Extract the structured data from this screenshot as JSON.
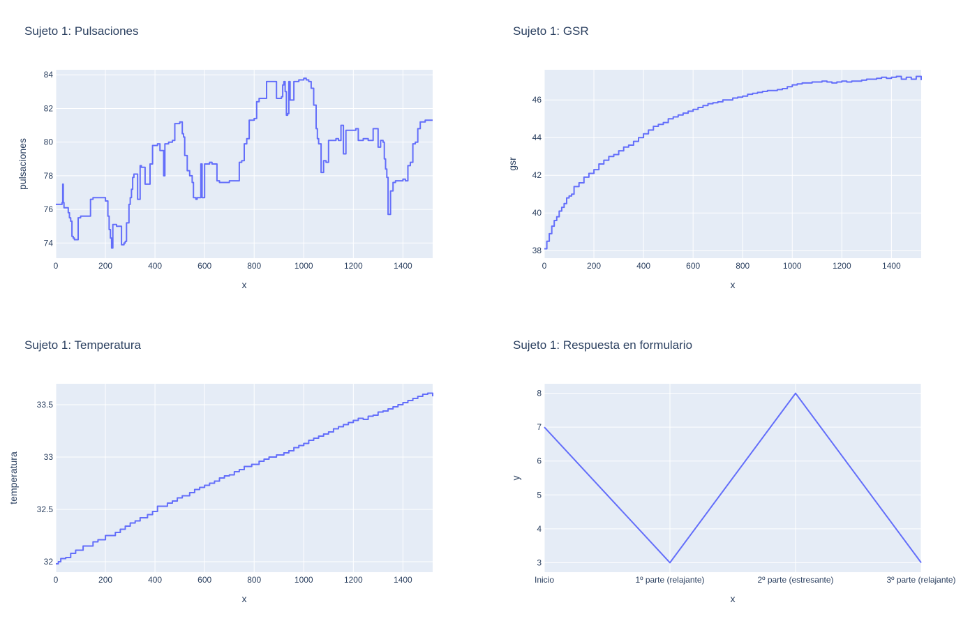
{
  "chart_data": [
    {
      "type": "line",
      "title": "Sujeto 1: Pulsaciones",
      "xlabel": "x",
      "ylabel": "pulsaciones",
      "xlim": [
        0,
        1520
      ],
      "ylim": [
        73.1,
        84.3
      ],
      "xticks": [
        0,
        200,
        400,
        600,
        800,
        1000,
        1200,
        1400
      ],
      "yticks": [
        74,
        76,
        78,
        80,
        82,
        84
      ],
      "line_shape": "hv",
      "series": [
        {
          "x": [
            0,
            25,
            28,
            30,
            33,
            50,
            55,
            60,
            65,
            70,
            75,
            90,
            100,
            140,
            150,
            170,
            200,
            210,
            215,
            220,
            225,
            230,
            245,
            265,
            275,
            280,
            285,
            290,
            295,
            300,
            305,
            310,
            315,
            320,
            330,
            340,
            345,
            350,
            360,
            380,
            390,
            410,
            420,
            425,
            435,
            440,
            455,
            470,
            480,
            500,
            510,
            515,
            520,
            530,
            540,
            550,
            555,
            560,
            565,
            570,
            585,
            590,
            600,
            620,
            630,
            650,
            660,
            700,
            740,
            750,
            760,
            770,
            780,
            800,
            810,
            820,
            830,
            840,
            850,
            870,
            890,
            910,
            915,
            920,
            925,
            930,
            935,
            940,
            945,
            960,
            980,
            1000,
            1010,
            1020,
            1030,
            1040,
            1050,
            1055,
            1060,
            1070,
            1080,
            1090,
            1100,
            1130,
            1140,
            1150,
            1160,
            1170,
            1210,
            1220,
            1240,
            1260,
            1280,
            1300,
            1310,
            1320,
            1325,
            1330,
            1335,
            1340,
            1350,
            1360,
            1370,
            1400,
            1410,
            1420,
            1430,
            1440,
            1450,
            1460,
            1470,
            1490,
            1520
          ],
          "y": [
            76.3,
            76.4,
            77.5,
            76.4,
            76.1,
            75.8,
            75.5,
            75.3,
            74.4,
            74.3,
            74.2,
            75.5,
            75.6,
            76.6,
            76.7,
            76.7,
            76.5,
            75.6,
            74.8,
            74.3,
            73.7,
            75.1,
            75.0,
            73.9,
            74.0,
            74.1,
            75.2,
            75.2,
            76.3,
            76.7,
            77.2,
            77.9,
            78.1,
            78.1,
            76.6,
            78.6,
            78.5,
            78.5,
            77.5,
            78.7,
            79.8,
            79.9,
            79.5,
            79.5,
            78.0,
            79.9,
            80.0,
            80.1,
            81.1,
            81.2,
            80.5,
            80.3,
            79.2,
            78.3,
            78.0,
            77.6,
            76.7,
            76.7,
            76.6,
            76.7,
            78.7,
            76.7,
            78.7,
            78.8,
            78.7,
            77.7,
            77.6,
            77.7,
            78.8,
            78.9,
            79.9,
            80.2,
            81.3,
            81.4,
            82.4,
            82.6,
            82.6,
            82.6,
            83.6,
            83.6,
            82.6,
            82.7,
            83.4,
            83.6,
            83.0,
            81.6,
            81.7,
            83.6,
            82.5,
            83.6,
            83.7,
            83.8,
            83.7,
            83.6,
            83.2,
            82.2,
            80.8,
            80.2,
            79.9,
            78.2,
            78.9,
            78.8,
            80.1,
            80.2,
            80.1,
            81.0,
            79.3,
            80.7,
            80.8,
            80.1,
            80.2,
            80.1,
            80.8,
            79.7,
            80.1,
            80.0,
            79.0,
            78.4,
            77.9,
            75.7,
            77.1,
            77.6,
            77.7,
            77.8,
            77.7,
            78.6,
            78.8,
            79.9,
            80.0,
            80.8,
            81.2,
            81.3,
            81.3
          ]
        }
      ]
    },
    {
      "type": "line",
      "title": "Sujeto 1: GSR",
      "xlabel": "x",
      "ylabel": "gsr",
      "xlim": [
        0,
        1520
      ],
      "ylim": [
        37.6,
        47.6
      ],
      "xticks": [
        0,
        200,
        400,
        600,
        800,
        1000,
        1200,
        1400
      ],
      "yticks": [
        38,
        40,
        42,
        44,
        46
      ],
      "line_shape": "hv",
      "series": [
        {
          "x": [
            0,
            10,
            20,
            30,
            40,
            50,
            60,
            70,
            80,
            90,
            100,
            110,
            120,
            140,
            160,
            180,
            200,
            220,
            240,
            260,
            280,
            300,
            320,
            340,
            360,
            380,
            400,
            420,
            440,
            460,
            480,
            500,
            520,
            540,
            560,
            580,
            600,
            620,
            640,
            660,
            680,
            700,
            720,
            740,
            760,
            780,
            800,
            820,
            840,
            860,
            880,
            900,
            920,
            940,
            960,
            980,
            1000,
            1020,
            1040,
            1060,
            1080,
            1100,
            1120,
            1140,
            1160,
            1180,
            1200,
            1220,
            1240,
            1260,
            1280,
            1300,
            1320,
            1340,
            1360,
            1380,
            1400,
            1420,
            1440,
            1460,
            1480,
            1500,
            1520
          ],
          "y": [
            38.1,
            38.5,
            38.9,
            39.3,
            39.6,
            39.8,
            40.1,
            40.3,
            40.5,
            40.8,
            40.9,
            41.0,
            41.4,
            41.6,
            41.9,
            42.1,
            42.3,
            42.6,
            42.8,
            43.0,
            43.1,
            43.3,
            43.5,
            43.6,
            43.8,
            44.0,
            44.2,
            44.4,
            44.6,
            44.7,
            44.8,
            45.0,
            45.1,
            45.2,
            45.3,
            45.4,
            45.5,
            45.6,
            45.7,
            45.8,
            45.85,
            45.9,
            46.0,
            46.0,
            46.1,
            46.15,
            46.2,
            46.3,
            46.35,
            46.4,
            46.45,
            46.5,
            46.5,
            46.55,
            46.6,
            46.7,
            46.8,
            46.85,
            46.9,
            46.9,
            46.95,
            46.95,
            47.0,
            46.95,
            46.9,
            46.95,
            47.0,
            46.95,
            47.0,
            47.0,
            47.05,
            47.1,
            47.1,
            47.15,
            47.2,
            47.15,
            47.2,
            47.25,
            47.1,
            47.2,
            47.1,
            47.25,
            47.05
          ]
        }
      ]
    },
    {
      "type": "line",
      "title": "Sujeto 1: Temperatura",
      "xlabel": "x",
      "ylabel": "temperatura",
      "xlim": [
        0,
        1520
      ],
      "ylim": [
        31.9,
        33.7
      ],
      "xticks": [
        0,
        200,
        400,
        600,
        800,
        1000,
        1200,
        1400
      ],
      "yticks": [
        32,
        32.5,
        33,
        33.5
      ],
      "yticklabels": [
        "32",
        "32.5",
        "33",
        "33.5"
      ],
      "line_shape": "hv",
      "series": [
        {
          "x": [
            0,
            10,
            20,
            40,
            60,
            80,
            110,
            150,
            170,
            200,
            240,
            260,
            280,
            300,
            320,
            340,
            370,
            390,
            410,
            450,
            470,
            490,
            510,
            540,
            560,
            580,
            600,
            620,
            640,
            660,
            680,
            700,
            720,
            740,
            760,
            790,
            820,
            840,
            860,
            890,
            920,
            940,
            960,
            980,
            1000,
            1020,
            1040,
            1060,
            1080,
            1100,
            1120,
            1140,
            1160,
            1180,
            1200,
            1220,
            1240,
            1260,
            1280,
            1300,
            1320,
            1340,
            1360,
            1380,
            1400,
            1420,
            1440,
            1460,
            1480,
            1500,
            1520
          ],
          "y": [
            31.98,
            32.0,
            32.03,
            32.04,
            32.08,
            32.11,
            32.15,
            32.19,
            32.21,
            32.25,
            32.28,
            32.31,
            32.34,
            32.37,
            32.39,
            32.42,
            32.45,
            32.48,
            32.53,
            32.56,
            32.58,
            32.61,
            32.63,
            32.66,
            32.69,
            32.71,
            32.73,
            32.75,
            32.77,
            32.8,
            32.82,
            32.83,
            32.86,
            32.88,
            32.91,
            32.93,
            32.96,
            32.98,
            33.0,
            33.02,
            33.04,
            33.06,
            33.09,
            33.11,
            33.13,
            33.16,
            33.18,
            33.2,
            33.22,
            33.24,
            33.27,
            33.29,
            33.31,
            33.33,
            33.35,
            33.37,
            33.36,
            33.39,
            33.4,
            33.43,
            33.44,
            33.46,
            33.48,
            33.5,
            33.52,
            33.54,
            33.56,
            33.58,
            33.6,
            33.61,
            33.58
          ]
        }
      ]
    },
    {
      "type": "line",
      "title": "Sujeto 1: Respuesta en formulario",
      "xlabel": "x",
      "ylabel": "y",
      "categories": [
        "Inicio",
        "1º parte (relajante)",
        "2º parte (estresante)",
        "3º parte (relajante)"
      ],
      "ylim": [
        2.72,
        8.28
      ],
      "yticks": [
        3,
        4,
        5,
        6,
        7,
        8
      ],
      "line_shape": "linear",
      "series": [
        {
          "values": [
            7,
            3,
            8,
            3
          ]
        }
      ]
    }
  ],
  "colors": {
    "series": "#636EFA",
    "plot_bg": "#E5ECF6",
    "grid": "#ffffff",
    "text": "#2a3f5f"
  }
}
